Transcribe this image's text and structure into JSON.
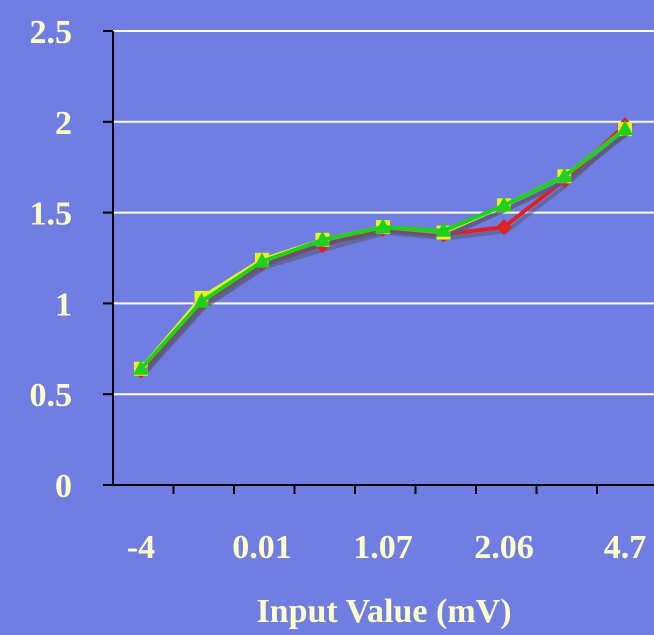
{
  "chart_data": {
    "type": "line",
    "title": "",
    "xlabel": "Input Value (mV)",
    "ylabel": "",
    "x_tick_labels": [
      "-4",
      "0.01",
      "1.07",
      "2.06",
      "4.7"
    ],
    "y_tick_labels": [
      "0",
      "0.5",
      "1",
      "1.5",
      "2",
      "2.5"
    ],
    "ylim": [
      0,
      2.5
    ],
    "grid": true,
    "legend": "none",
    "point_count": 9,
    "series": [
      {
        "color": "#e02020",
        "marker": "diamond",
        "values": [
          0.63,
          1.0,
          1.22,
          1.32,
          1.41,
          1.38,
          1.42,
          1.68,
          1.98
        ]
      },
      {
        "color": "#f0f020",
        "marker": "square",
        "values": [
          0.64,
          1.03,
          1.24,
          1.35,
          1.42,
          1.39,
          1.54,
          1.7,
          1.96
        ]
      },
      {
        "color": "#20d020",
        "marker": "triangle",
        "values": [
          0.64,
          1.01,
          1.23,
          1.35,
          1.42,
          1.4,
          1.54,
          1.7,
          1.96
        ]
      }
    ]
  }
}
